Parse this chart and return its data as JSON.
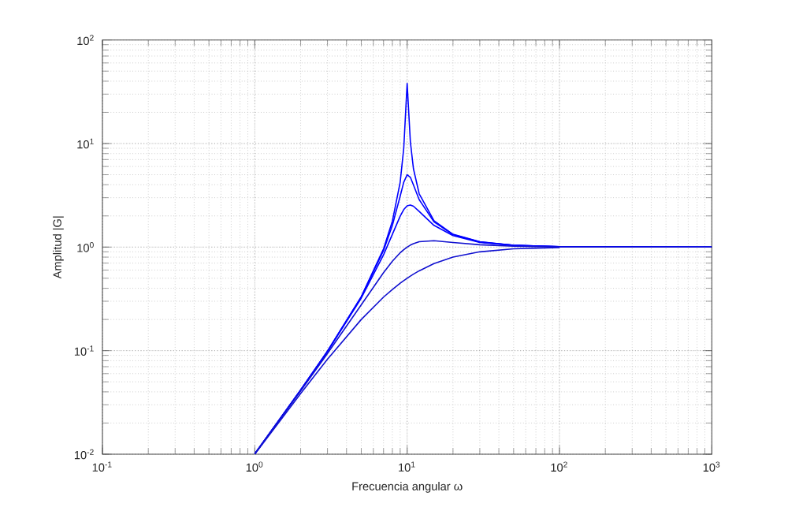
{
  "chart_data": {
    "type": "line",
    "xlabel": "Frecuencia angular ω",
    "ylabel": "Amplitud |G|",
    "log": "xy",
    "grid": true,
    "line_style": "solid",
    "xlim": [
      0.1,
      1000
    ],
    "ylim": [
      0.01,
      100
    ],
    "xticks": [
      {
        "value": 0.1,
        "label": "10$^{-1}$"
      },
      {
        "value": 1,
        "label": "10$^{0}$"
      },
      {
        "value": 10,
        "label": "10$^{1}$"
      },
      {
        "value": 100,
        "label": "10$^{2}$"
      },
      {
        "value": 1000,
        "label": "10$^{3}$"
      }
    ],
    "yticks": [
      {
        "value": 0.01,
        "label": "10$^{-2}$"
      },
      {
        "value": 0.1,
        "label": "10$^{-1}$"
      },
      {
        "value": 1,
        "label": "10$^{0}$"
      },
      {
        "value": 10,
        "label": "10$^{1}$"
      },
      {
        "value": 100,
        "label": "10$^{2}$"
      }
    ],
    "x": [
      1,
      2,
      3,
      5,
      7,
      8,
      9,
      9.5,
      10,
      10.5,
      11,
      12,
      15,
      20,
      30,
      50,
      100,
      1000
    ],
    "series": [
      {
        "color": "#0000ff",
        "values": [
          0.0101,
          0.0417,
          0.0989,
          0.333,
          0.961,
          1.78,
          4.23,
          9.0,
          38,
          10.4,
          5.71,
          3.27,
          1.8,
          1.33,
          1.125,
          1.04,
          1.01,
          1.0
        ]
      },
      {
        "color": "#0000ff",
        "values": [
          0.0101,
          0.0417,
          0.0987,
          0.33,
          0.926,
          1.62,
          3.1,
          4.23,
          5.0,
          4.72,
          3.98,
          2.87,
          1.75,
          1.32,
          1.12,
          1.04,
          1.01,
          1.0
        ]
      },
      {
        "color": "#0000ff",
        "values": [
          0.0101,
          0.0415,
          0.098,
          0.322,
          0.842,
          1.33,
          1.99,
          2.3,
          2.5,
          2.55,
          2.48,
          2.21,
          1.62,
          1.29,
          1.11,
          1.04,
          1.01,
          1.0
        ]
      },
      {
        "color": "#1010d0",
        "values": [
          0.0101,
          0.0408,
          0.0939,
          0.277,
          0.566,
          0.73,
          0.881,
          0.945,
          1.0,
          1.045,
          1.08,
          1.127,
          1.152,
          1.109,
          1.053,
          1.02,
          1.0,
          1.0
        ]
      },
      {
        "color": "#1010d0",
        "values": [
          0.01,
          0.0385,
          0.0826,
          0.2,
          0.329,
          0.39,
          0.448,
          0.474,
          0.5,
          0.524,
          0.548,
          0.59,
          0.692,
          0.8,
          0.9,
          0.962,
          0.99,
          null
        ]
      }
    ]
  }
}
